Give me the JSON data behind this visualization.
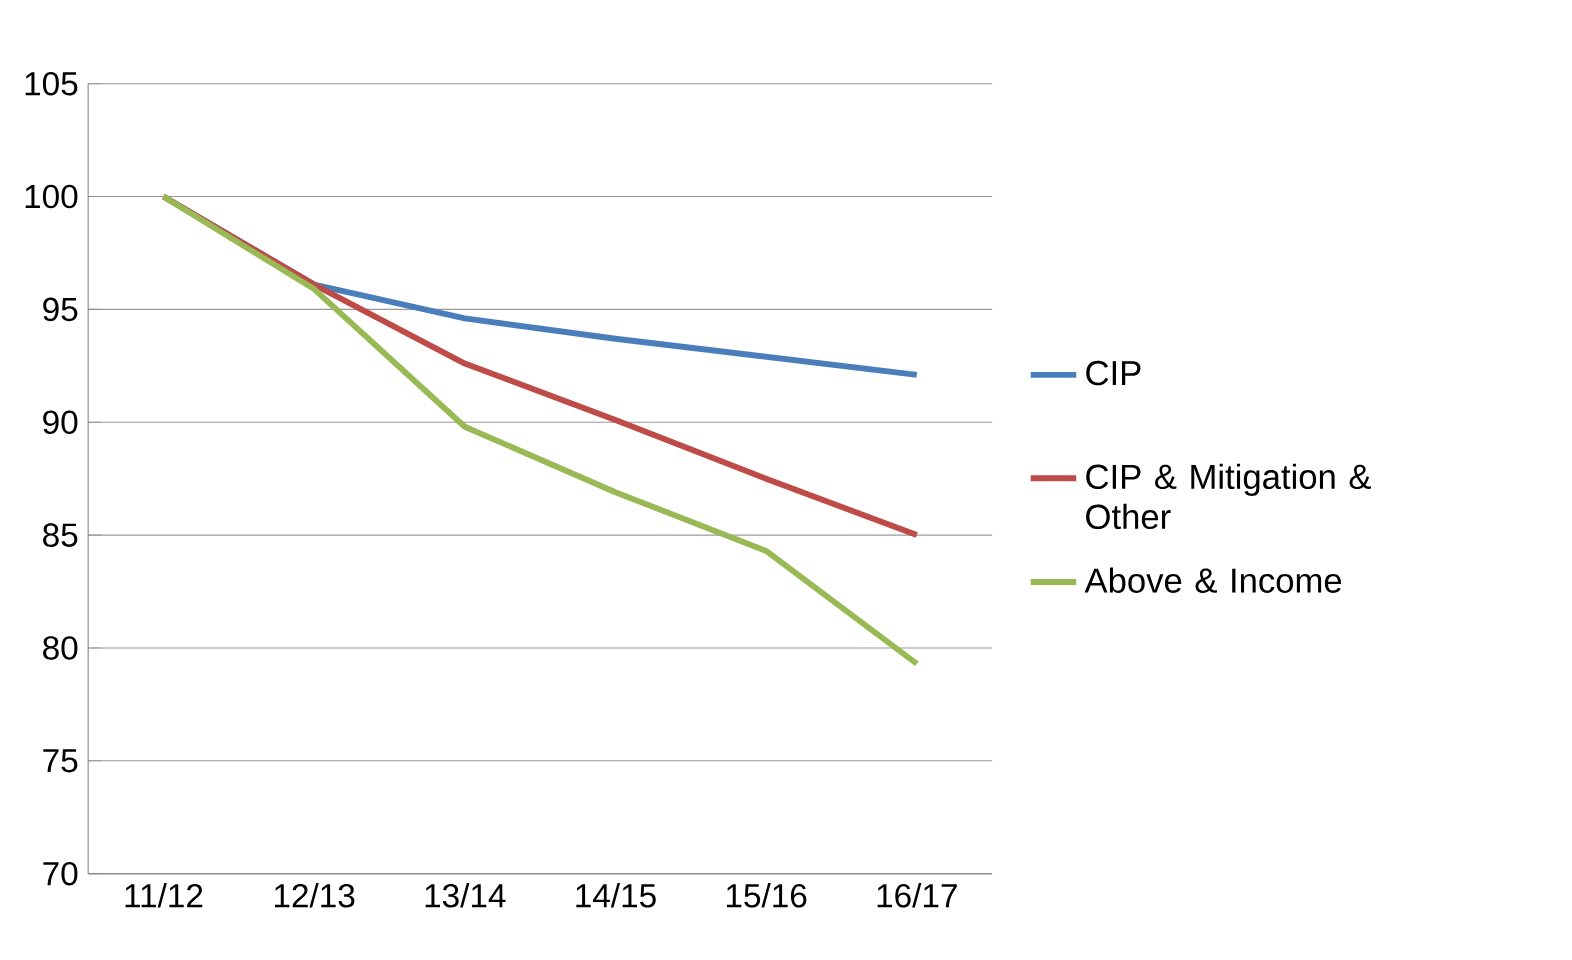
{
  "chart_data": {
    "type": "line",
    "categories": [
      "11/12",
      "12/13",
      "13/14",
      "14/15",
      "15/16",
      "16/17"
    ],
    "series": [
      {
        "name": "CIP",
        "color": "#4a7ebb",
        "values": [
          100,
          96.1,
          94.6,
          93.7,
          92.9,
          92.1
        ]
      },
      {
        "name": "CIP & Mitigation & Other",
        "color": "#be4b48",
        "values": [
          100,
          96.1,
          92.6,
          90.1,
          87.5,
          85.0
        ]
      },
      {
        "name": "Above & Income",
        "color": "#98b954",
        "values": [
          100,
          95.9,
          89.8,
          86.9,
          84.3,
          79.3
        ]
      }
    ],
    "ylim": [
      70,
      105
    ],
    "yticks": [
      70,
      75,
      80,
      85,
      90,
      95,
      100,
      105
    ],
    "grid": "y",
    "legend": "right",
    "marker": "none",
    "line_style": "solid"
  }
}
